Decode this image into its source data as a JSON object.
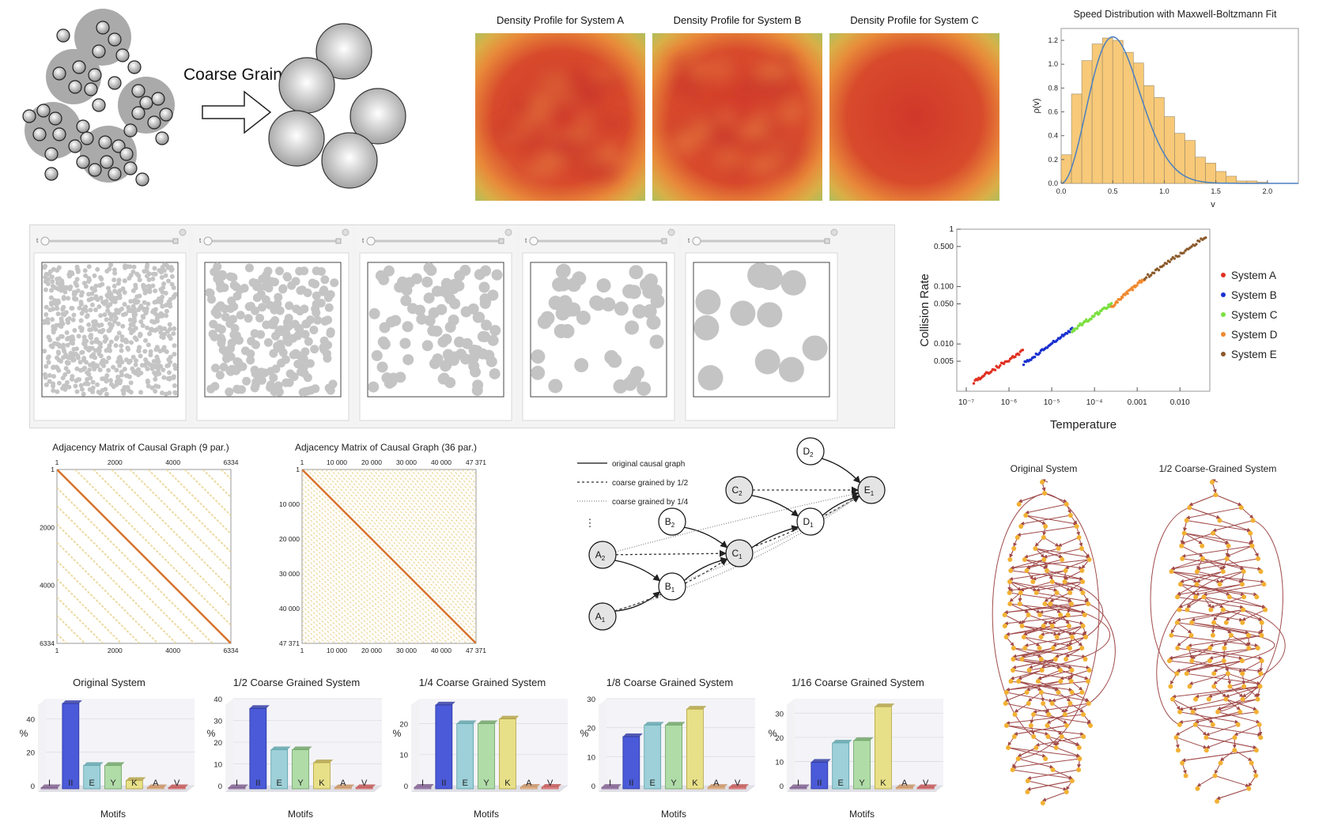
{
  "coarse_grain": {
    "label": "Coarse Grain"
  },
  "density": {
    "titles": [
      "Density Profile for System A",
      "Density Profile for System B",
      "Density Profile for System C"
    ]
  },
  "sliders": {
    "glyph": "t"
  },
  "colors": {
    "bar_fill": "#f7c978",
    "fit_line": "#4a7fc0",
    "sysA": "#e03020",
    "sysB": "#1a30d0",
    "sysC": "#7be040",
    "sysD": "#f08a30",
    "sysE": "#8b5a2b",
    "graph_edge": "#a04a4a",
    "graph_node": "#f2b134",
    "heat_hot": "#d0382a",
    "heat_edge": "#a8c060"
  },
  "adjacency": [
    {
      "title": "Adjacency Matrix of Causal Graph (9 par.)",
      "ticks_top": [
        "1",
        "2000",
        "4000",
        "6334"
      ],
      "ticks_left": [
        "1",
        "2000",
        "4000",
        "6334"
      ]
    },
    {
      "title": "Adjacency Matrix of Causal Graph (36 par.)",
      "ticks_top": [
        "1",
        "10 000",
        "20 000",
        "30 000",
        "40 000",
        "47 371"
      ],
      "ticks_left": [
        "1",
        "10 000",
        "20 000",
        "30 000",
        "40 000",
        "47 371"
      ]
    }
  ],
  "causal": {
    "legend": [
      "original causal graph",
      "coarse grained by 1/2",
      "coarse grained by 1/4"
    ],
    "ellipsis": "⋮",
    "nodes": [
      {
        "id": "A2",
        "base": "A",
        "sub": "2"
      },
      {
        "id": "A1",
        "base": "A",
        "sub": "1"
      },
      {
        "id": "B2",
        "base": "B",
        "sub": "2"
      },
      {
        "id": "B1",
        "base": "B",
        "sub": "1"
      },
      {
        "id": "C2",
        "base": "C",
        "sub": "2"
      },
      {
        "id": "C1",
        "base": "C",
        "sub": "1"
      },
      {
        "id": "D2",
        "base": "D",
        "sub": "2"
      },
      {
        "id": "D1",
        "base": "D",
        "sub": "1"
      },
      {
        "id": "E1",
        "base": "E",
        "sub": "1"
      }
    ]
  },
  "graphs": {
    "titles": [
      "Original System",
      "1/2 Coarse-Grained System"
    ]
  },
  "chart_data": [
    {
      "type": "bar",
      "title": "Speed Distribution with Maxwell-Boltzmann Fit",
      "xlabel": "v",
      "ylabel": "ρ(v)",
      "xlim": [
        0,
        2.3
      ],
      "ylim": [
        0,
        1.3
      ],
      "xticks": [
        "0.0",
        "0.5",
        "1.0",
        "1.5",
        "2.0"
      ],
      "yticks": [
        "0.0",
        "0.2",
        "0.4",
        "0.6",
        "0.8",
        "1.0",
        "1.2"
      ],
      "bin_width": 0.1,
      "bin_start": 0.0,
      "values": [
        0.24,
        0.75,
        1.03,
        1.17,
        1.22,
        1.2,
        1.1,
        1.01,
        0.82,
        0.72,
        0.56,
        0.42,
        0.36,
        0.22,
        0.17,
        0.1,
        0.06,
        0.02,
        0.02,
        0.01
      ],
      "fit_peak": 1.23
    },
    {
      "type": "scatter",
      "xlabel": "Temperature",
      "ylabel": "Collision Rate",
      "xscale": "log",
      "yscale": "log",
      "xlim": [
        6e-08,
        0.05
      ],
      "ylim": [
        0.0015,
        1.0
      ],
      "xticks": [
        "10⁻⁷",
        "10⁻⁶",
        "10⁻⁵",
        "10⁻⁴",
        "0.001",
        "0.010"
      ],
      "yticks": [
        "0.005",
        "0.010",
        "0.050",
        "0.100",
        "0.500",
        "1"
      ],
      "legend_position": "right",
      "series": [
        {
          "name": "System A",
          "x_range": [
            1.5e-07,
            2.1e-06
          ],
          "y_range": [
            0.0022,
            0.0075
          ]
        },
        {
          "name": "System B",
          "x_range": [
            2.2e-06,
            3e-05
          ],
          "y_range": [
            0.0045,
            0.018
          ]
        },
        {
          "name": "System C",
          "x_range": [
            3e-05,
            0.00025
          ],
          "y_range": [
            0.017,
            0.05
          ]
        },
        {
          "name": "System D",
          "x_range": [
            0.00025,
            0.0015
          ],
          "y_range": [
            0.045,
            0.14
          ]
        },
        {
          "name": "System E",
          "x_range": [
            0.0015,
            0.04
          ],
          "y_range": [
            0.14,
            0.75
          ]
        }
      ]
    },
    {
      "type": "bar",
      "title": "Original System",
      "xlabel": "Motifs",
      "ylabel": "%",
      "ymax": 52,
      "yticks": [
        0,
        20,
        40
      ],
      "categories": [
        "I",
        "II",
        "E",
        "Y",
        "K",
        "A",
        "V"
      ],
      "values": [
        0.5,
        51,
        14,
        14,
        5,
        0.5,
        0.5
      ]
    },
    {
      "type": "bar",
      "title": "1/2 Coarse Grained System",
      "xlabel": "Motifs",
      "ylabel": "%",
      "ymax": 40,
      "yticks": [
        0,
        10,
        20,
        30,
        40
      ],
      "categories": [
        "I",
        "II",
        "E",
        "Y",
        "K",
        "A",
        "V"
      ],
      "values": [
        0.5,
        37,
        18,
        18,
        12,
        0.5,
        0.5
      ]
    },
    {
      "type": "bar",
      "title": "1/4 Coarse Grained System",
      "xlabel": "Motifs",
      "ylabel": "%",
      "ymax": 28,
      "yticks": [
        0,
        10,
        20
      ],
      "categories": [
        "I",
        "II",
        "E",
        "Y",
        "K",
        "A",
        "V"
      ],
      "values": [
        0.5,
        27,
        21,
        21,
        22.5,
        0.5,
        0.5
      ]
    },
    {
      "type": "bar",
      "title": "1/8 Coarse Grained System",
      "xlabel": "Motifs",
      "ylabel": "%",
      "ymax": 30,
      "yticks": [
        0,
        10,
        20,
        30
      ],
      "categories": [
        "I",
        "II",
        "E",
        "Y",
        "K",
        "A",
        "V"
      ],
      "values": [
        0.5,
        18,
        22,
        22,
        27.5,
        0.5,
        0.5
      ]
    },
    {
      "type": "bar",
      "title": "1/16 Coarse Grained System",
      "xlabel": "Motifs",
      "ylabel": "%",
      "ymax": 36,
      "yticks": [
        0,
        10,
        20,
        30
      ],
      "categories": [
        "I",
        "II",
        "E",
        "Y",
        "K",
        "A",
        "V"
      ],
      "values": [
        0.5,
        11,
        19,
        20,
        34,
        0.5,
        0.5
      ]
    }
  ]
}
